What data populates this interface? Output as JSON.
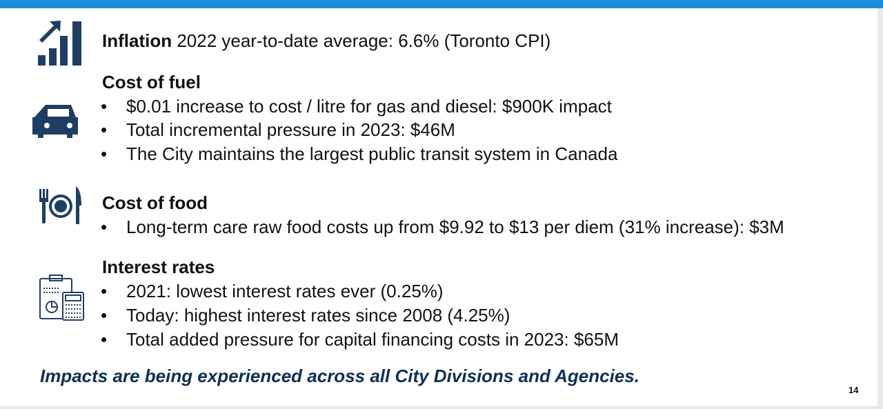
{
  "inflation": {
    "label": "Inflation",
    "text": "2022 year-to-date average: 6.6% (Toronto CPI)"
  },
  "sections": [
    {
      "heading": "Cost of fuel",
      "bullets": [
        "$0.01 increase to cost / litre for gas and diesel: $900K impact",
        "Total incremental pressure in 2023: $46M",
        "The City maintains the largest public transit system in Canada"
      ]
    },
    {
      "heading": "Cost of food",
      "bullets": [
        "Long-term care raw food costs up from $9.92 to $13 per diem (31% increase): $3M"
      ]
    },
    {
      "heading": "Interest rates",
      "bullets": [
        "2021: lowest interest rates ever (0.25%)",
        "Today: highest interest rates since 2008 (4.25%)",
        "Total added pressure for capital financing costs in 2023: $65M"
      ]
    }
  ],
  "footer": "Impacts are being experienced across all City Divisions and Agencies.",
  "page_number": "14"
}
